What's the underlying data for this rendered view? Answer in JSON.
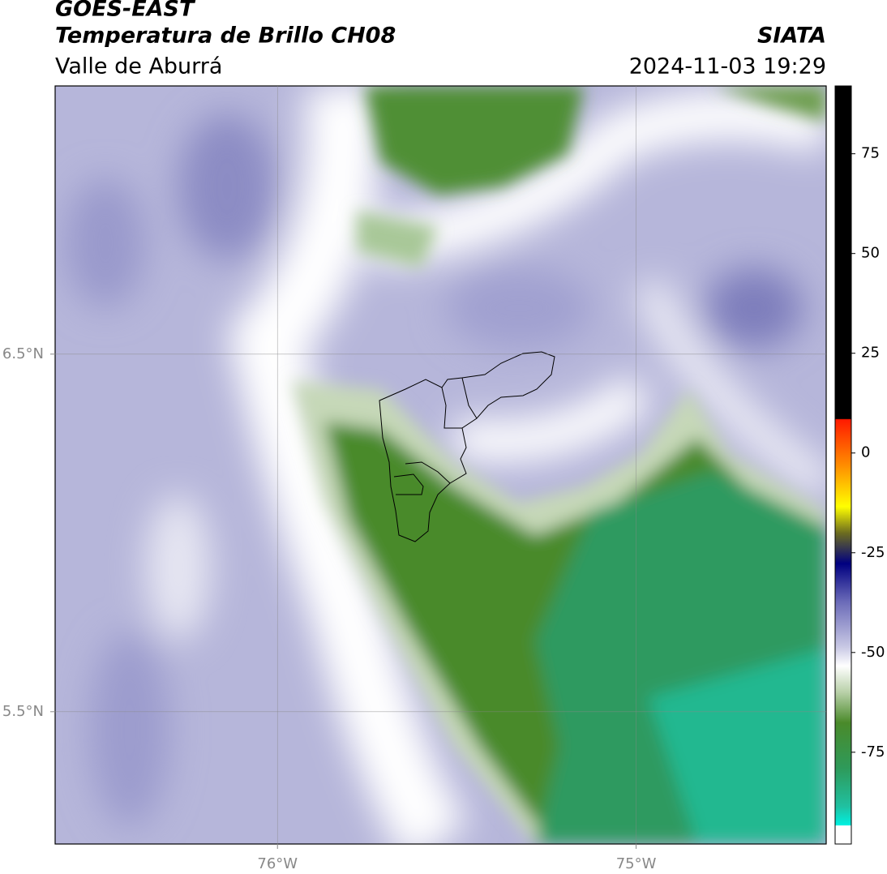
{
  "header": {
    "title": "GOES-EAST",
    "subtitle": "Temperatura de Brillo CH08",
    "source": "SIATA",
    "region": "Valle de Aburrá",
    "timestamp": "2024-11-03 19:29"
  },
  "map": {
    "xlim": [
      -76.62,
      -74.47
    ],
    "ylim": [
      5.13,
      7.25
    ],
    "xticks": [
      {
        "value": -76,
        "label": "76°W"
      },
      {
        "value": -75,
        "label": "75°W"
      }
    ],
    "yticks": [
      {
        "value": 6.5,
        "label": "6.5°N"
      },
      {
        "value": 5.5,
        "label": "5.5°N"
      }
    ],
    "grid": true
  },
  "colorbar": {
    "lim": [
      -98,
      92
    ],
    "ticks": [
      75,
      50,
      25,
      0,
      -25,
      -50,
      -75
    ]
  }
}
